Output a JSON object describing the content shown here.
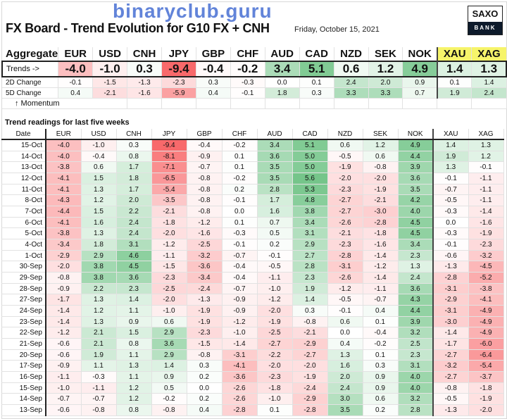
{
  "title": "FX Board - Trend Evolution for G10 FX + CNH",
  "date": "Friday, October 15, 2021",
  "logo": {
    "top": "SAXO",
    "bottom": "BANK"
  },
  "watermark": "binaryclub.guru",
  "colors": {
    "positive": "#63be7b",
    "negative": "#f8696b",
    "metals_header": "#f6f46a"
  },
  "currencies": [
    "EUR",
    "USD",
    "CNH",
    "JPY",
    "GBP",
    "CHF",
    "AUD",
    "CAD",
    "NZD",
    "SEK",
    "NOK",
    "XAU",
    "XAG"
  ],
  "aggregate": {
    "label": "Aggregate",
    "trends_label": "Trends ->",
    "trends": [
      "-4.0",
      "-1.0",
      "0.3",
      "-9.4",
      "-0.4",
      "-0.2",
      "3.4",
      "5.1",
      "0.6",
      "1.2",
      "4.9",
      "1.4",
      "1.3"
    ],
    "change_2d_label": "2D Change",
    "change_2d": [
      "-0.1",
      "-1.5",
      "-1.3",
      "-2.3",
      "0.3",
      "-0.3",
      "0.0",
      "0.1",
      "2.4",
      "2.0",
      "0.9",
      "0.1",
      "1.4"
    ],
    "change_5d_label": "5D Change",
    "change_5d": [
      "0.4",
      "-2.1",
      "-1.6",
      "-5.9",
      "0.4",
      "-0.1",
      "1.8",
      "0.3",
      "3.3",
      "3.3",
      "0.7",
      "1.9",
      "2.4"
    ],
    "momentum_label": "↑ Momentum"
  },
  "history": {
    "title": "Trend readings for last five weeks",
    "date_header": "Date",
    "rows": [
      {
        "date": "15-Oct",
        "values": [
          "-4.0",
          "-1.0",
          "0.3",
          "-9.4",
          "-0.4",
          "-0.2",
          "3.4",
          "5.1",
          "0.6",
          "1.2",
          "4.9",
          "1.4",
          "1.3"
        ]
      },
      {
        "date": "14-Oct",
        "values": [
          "-4.0",
          "-0.4",
          "0.8",
          "-8.1",
          "-0.9",
          "0.1",
          "3.6",
          "5.0",
          "-0.5",
          "0.6",
          "4.4",
          "1.9",
          "1.2"
        ]
      },
      {
        "date": "13-Oct",
        "values": [
          "-3.8",
          "0.6",
          "1.7",
          "-7.1",
          "-0.7",
          "0.1",
          "3.5",
          "5.0",
          "-1.9",
          "-0.8",
          "3.9",
          "1.3",
          "-0.1"
        ]
      },
      {
        "date": "12-Oct",
        "values": [
          "-4.1",
          "1.5",
          "1.8",
          "-6.5",
          "-0.8",
          "-0.2",
          "3.5",
          "5.6",
          "-2.0",
          "-2.0",
          "3.6",
          "-0.1",
          "-1.1"
        ]
      },
      {
        "date": "11-Oct",
        "values": [
          "-4.1",
          "1.3",
          "1.7",
          "-5.4",
          "-0.8",
          "0.2",
          "2.8",
          "5.3",
          "-2.3",
          "-1.9",
          "3.5",
          "-0.7",
          "-1.1"
        ]
      },
      {
        "date": "8-Oct",
        "values": [
          "-4.3",
          "1.2",
          "2.0",
          "-3.5",
          "-0.8",
          "-0.1",
          "1.7",
          "4.8",
          "-2.7",
          "-2.1",
          "4.2",
          "-0.5",
          "-1.1"
        ]
      },
      {
        "date": "7-Oct",
        "values": [
          "-4.4",
          "1.5",
          "2.2",
          "-2.1",
          "-0.8",
          "0.0",
          "1.6",
          "3.8",
          "-2.7",
          "-3.0",
          "4.0",
          "-0.3",
          "-1.4"
        ]
      },
      {
        "date": "6-Oct",
        "values": [
          "-4.1",
          "1.6",
          "2.4",
          "-1.8",
          "-1.2",
          "0.1",
          "0.7",
          "3.4",
          "-2.6",
          "-2.8",
          "4.5",
          "0.0",
          "-1.6"
        ]
      },
      {
        "date": "5-Oct",
        "values": [
          "-3.8",
          "1.3",
          "2.4",
          "-2.0",
          "-1.6",
          "-0.3",
          "0.5",
          "3.1",
          "-2.1",
          "-1.8",
          "4.5",
          "-0.3",
          "-1.9"
        ]
      },
      {
        "date": "4-Oct",
        "values": [
          "-3.4",
          "1.8",
          "3.1",
          "-1.2",
          "-2.5",
          "-0.1",
          "0.2",
          "2.9",
          "-2.3",
          "-1.6",
          "3.4",
          "-0.1",
          "-2.3"
        ]
      },
      {
        "date": "1-Oct",
        "values": [
          "-2.9",
          "2.9",
          "4.6",
          "-1.1",
          "-3.2",
          "-0.7",
          "-0.1",
          "2.7",
          "-2.8",
          "-1.4",
          "2.3",
          "-0.6",
          "-3.2"
        ]
      },
      {
        "date": "30-Sep",
        "values": [
          "-2.0",
          "3.8",
          "4.5",
          "-1.5",
          "-3.6",
          "-0.4",
          "-0.5",
          "2.8",
          "-3.1",
          "-1.2",
          "1.3",
          "-1.3",
          "-4.5"
        ]
      },
      {
        "date": "29-Sep",
        "values": [
          "-0.8",
          "3.8",
          "3.6",
          "-2.3",
          "-3.4",
          "-0.4",
          "-1.1",
          "2.3",
          "-2.6",
          "-1.4",
          "2.4",
          "-2.8",
          "-5.2"
        ]
      },
      {
        "date": "28-Sep",
        "values": [
          "-0.9",
          "2.2",
          "2.3",
          "-2.5",
          "-2.4",
          "-0.7",
          "-1.0",
          "1.9",
          "-1.2",
          "-1.1",
          "3.6",
          "-3.1",
          "-3.8"
        ]
      },
      {
        "date": "27-Sep",
        "values": [
          "-1.7",
          "1.3",
          "1.4",
          "-2.0",
          "-1.3",
          "-0.9",
          "-1.2",
          "1.4",
          "-0.5",
          "-0.7",
          "4.3",
          "-2.9",
          "-4.1"
        ]
      },
      {
        "date": "24-Sep",
        "values": [
          "-1.4",
          "1.2",
          "1.1",
          "-1.0",
          "-1.9",
          "-0.9",
          "-2.0",
          "0.3",
          "-0.1",
          "0.4",
          "4.4",
          "-3.1",
          "-4.9"
        ]
      },
      {
        "date": "23-Sep",
        "values": [
          "-1.4",
          "1.3",
          "0.9",
          "0.6",
          "-1.9",
          "-1.2",
          "-1.9",
          "-0.8",
          "0.6",
          "0.1",
          "3.9",
          "-3.0",
          "-4.9"
        ]
      },
      {
        "date": "22-Sep",
        "values": [
          "-1.2",
          "2.1",
          "1.5",
          "2.9",
          "-2.3",
          "-1.0",
          "-2.5",
          "-2.1",
          "0.0",
          "-0.4",
          "3.2",
          "-1.4",
          "-4.9"
        ]
      },
      {
        "date": "21-Sep",
        "values": [
          "-0.6",
          "2.1",
          "0.8",
          "3.6",
          "-1.5",
          "-1.4",
          "-2.7",
          "-2.9",
          "0.4",
          "-0.2",
          "2.5",
          "-1.7",
          "-6.0"
        ]
      },
      {
        "date": "20-Sep",
        "values": [
          "-0.6",
          "1.9",
          "1.1",
          "2.9",
          "-0.8",
          "-3.1",
          "-2.2",
          "-2.7",
          "1.3",
          "0.1",
          "2.3",
          "-2.7",
          "-6.4"
        ]
      },
      {
        "date": "17-Sep",
        "values": [
          "-0.9",
          "1.1",
          "1.3",
          "1.4",
          "0.3",
          "-4.1",
          "-2.0",
          "-2.0",
          "1.6",
          "0.3",
          "3.1",
          "-3.2",
          "-5.4"
        ]
      },
      {
        "date": "16-Sep",
        "values": [
          "-1.1",
          "-0.3",
          "1.1",
          "0.9",
          "0.2",
          "-3.6",
          "-2.3",
          "-1.9",
          "2.0",
          "0.9",
          "4.0",
          "-2.7",
          "-3.7"
        ]
      },
      {
        "date": "15-Sep",
        "values": [
          "-1.0",
          "-1.1",
          "1.2",
          "0.5",
          "0.0",
          "-2.6",
          "-1.8",
          "-2.4",
          "2.4",
          "0.9",
          "4.0",
          "-0.8",
          "-1.8"
        ]
      },
      {
        "date": "14-Sep",
        "values": [
          "-0.7",
          "-0.7",
          "1.2",
          "-0.2",
          "0.2",
          "-2.6",
          "-1.0",
          "-2.9",
          "3.0",
          "0.6",
          "3.2",
          "-0.5",
          "-1.9"
        ]
      },
      {
        "date": "13-Sep",
        "values": [
          "-0.6",
          "-0.8",
          "0.8",
          "-0.8",
          "0.4",
          "-2.8",
          "0.1",
          "-2.8",
          "3.5",
          "0.2",
          "2.8",
          "-1.3",
          "-2.0"
        ]
      }
    ]
  }
}
